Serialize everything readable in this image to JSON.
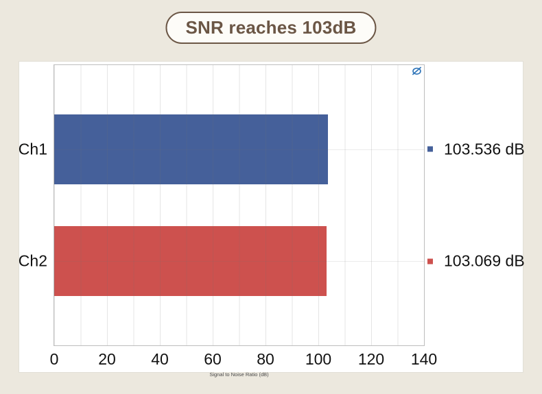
{
  "badge": {
    "text": "SNR reaches 103dB",
    "text_color": "#6B5645",
    "border_color": "#6B5645",
    "background": "#FDFCF8"
  },
  "page": {
    "background": "#ECE8DE",
    "panel_background": "#FFFFFF"
  },
  "icons": {
    "watermark": "ap-logo"
  },
  "chart_data": {
    "type": "bar",
    "orientation": "horizontal",
    "title": "",
    "categories": [
      "Ch1",
      "Ch2"
    ],
    "series": [
      {
        "name": "Signal to Noise Ratio",
        "values": [
          103.536,
          103.069
        ]
      }
    ],
    "value_labels": [
      "103.536 dB",
      "103.069 dB"
    ],
    "bar_colors": [
      "#45609A",
      "#CD514E"
    ],
    "xlabel": "Signal to Noise Ratio (dB)",
    "xlim": [
      0,
      140
    ],
    "x_tick_labels": [
      "0",
      "20",
      "40",
      "60",
      "80",
      "100",
      "120",
      "140"
    ],
    "x_minor_gridline_step": 10,
    "grid": "on",
    "legend_position": "right-of-plot"
  }
}
